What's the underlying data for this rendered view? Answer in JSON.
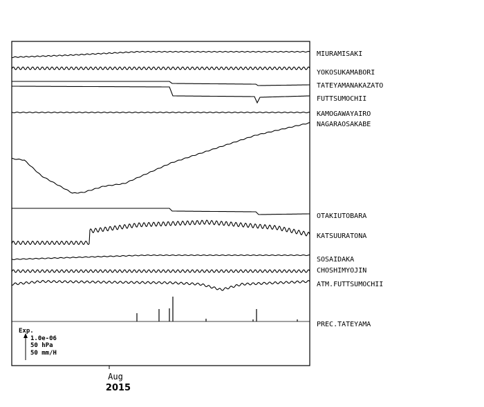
{
  "stations": [
    "MIURAMISAKI",
    "YOKOSUKAMABORI",
    "TATEYAMANAKAZATO",
    "FUTTSUMOCHII",
    "KAMOGAWAYAIRO",
    "NAGARAOSAKABE",
    "OTAKIUTOBARA",
    "KATSUURATONA",
    "SOSAIDAKA",
    "CHOSHIMYOJIN",
    "ATM.FUTTSUMOCHII",
    "PREC.TATEYAMA"
  ],
  "scale": {
    "title": "Exp.",
    "lines": [
      "1.0e-06",
      "50 hPa",
      "50 mm/H"
    ]
  },
  "x_axis": {
    "month": "Aug",
    "year": "2015"
  }
}
